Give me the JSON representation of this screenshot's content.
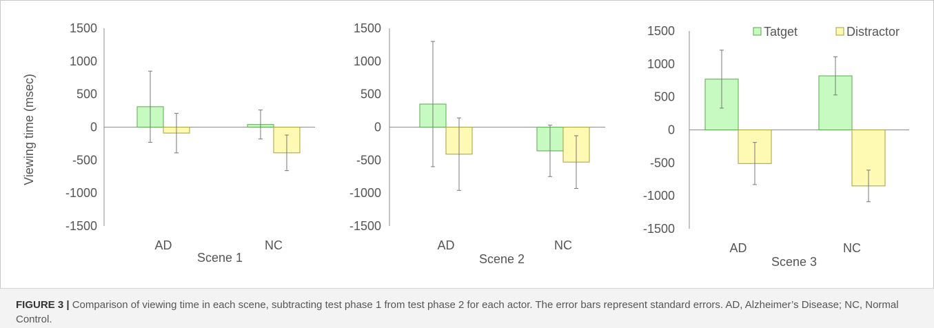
{
  "chart_data": [
    {
      "type": "bar",
      "title": "",
      "xlabel": "Scene 1",
      "ylabel": "Viewing time (msec)",
      "ylim": [
        -1500,
        1500
      ],
      "yticks": [
        "1500",
        "1000",
        "500",
        "0",
        "-500",
        "-1000",
        "-1500"
      ],
      "categories": [
        "AD",
        "NC"
      ],
      "series": [
        {
          "values": [
            310,
            40
          ],
          "errors": [
            540,
            220
          ]
        },
        {
          "values": [
            -90,
            -390
          ],
          "errors": [
            300,
            270
          ]
        }
      ]
    },
    {
      "type": "bar",
      "title": "",
      "xlabel": "Scene 2",
      "ylabel": "",
      "ylim": [
        -1500,
        1500
      ],
      "yticks": [
        "1500",
        "1000",
        "500",
        "0",
        "-500",
        "-1000",
        "-1500"
      ],
      "categories": [
        "AD",
        "NC"
      ],
      "series": [
        {
          "values": [
            350,
            -360
          ],
          "errors": [
            950,
            390
          ]
        },
        {
          "values": [
            -410,
            -530
          ],
          "errors": [
            550,
            400
          ]
        }
      ]
    },
    {
      "type": "bar",
      "title": "",
      "xlabel": "Scene 3",
      "ylabel": "",
      "ylim": [
        -1500,
        1500
      ],
      "yticks": [
        "1500",
        "1000",
        "500",
        "0",
        "-500",
        "-1000",
        "-1500"
      ],
      "categories": [
        "AD",
        "NC"
      ],
      "legend_position": "top",
      "series": [
        {
          "name": "Tatget",
          "values": [
            770,
            820
          ],
          "errors": [
            440,
            290
          ]
        },
        {
          "name": "Distractor",
          "values": [
            -510,
            -850
          ],
          "errors": [
            320,
            240
          ]
        }
      ]
    }
  ],
  "colors": {
    "target_fill": "#c6fac1",
    "target_stroke": "#5aa84f",
    "distractor_fill": "#fefab4",
    "distractor_stroke": "#a59e3c",
    "axis": "#8c8c8c",
    "text": "#555555"
  },
  "caption": {
    "label": "FIGURE 3 |",
    "text": " Comparison of viewing time in each scene, subtracting test phase 1 from test phase 2 for each actor. The error bars represent standard errors. AD, Alzheimer’s Disease; NC, Normal Control."
  }
}
